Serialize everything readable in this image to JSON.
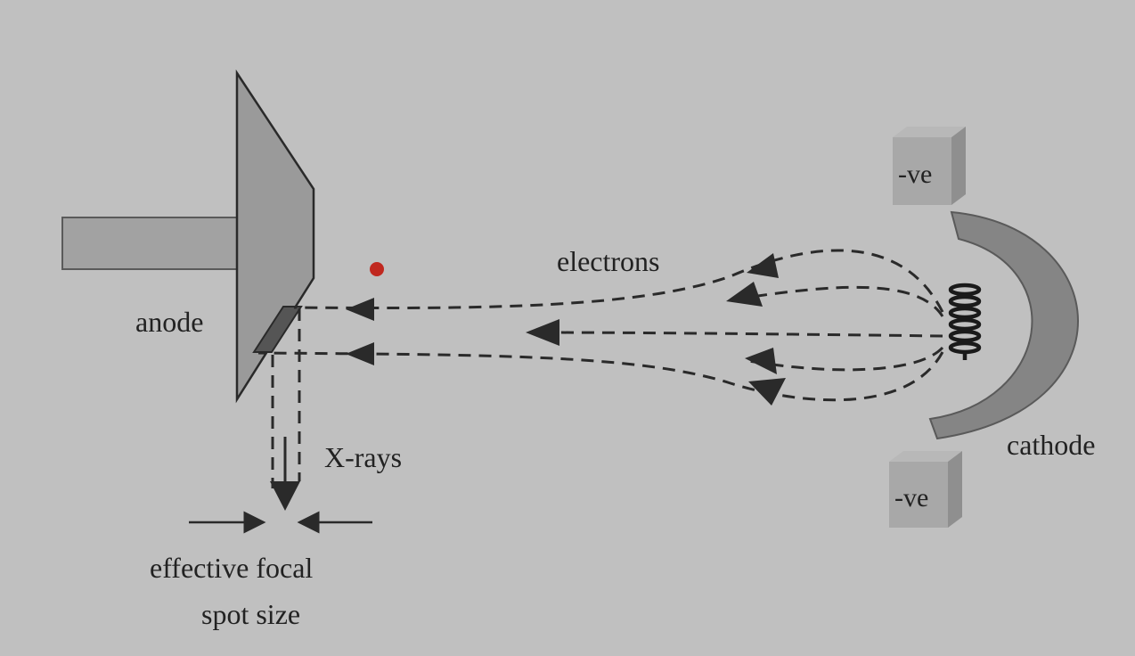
{
  "labels": {
    "anode": "anode",
    "electrons": "electrons",
    "xrays": "X-rays",
    "cathode": "cathode",
    "focal_line1": "effective focal",
    "focal_line2": "spot size",
    "plate_top": "-ve",
    "plate_bottom": "-ve"
  },
  "colors": {
    "background": "#c0c0c0",
    "anode_fill": "#9a9a9a",
    "target_fill": "#555555",
    "cathode_fill": "#858585",
    "plate_fill": "#a8a8a8",
    "stroke": "#2a2a2a",
    "marker": "#c0281f"
  }
}
